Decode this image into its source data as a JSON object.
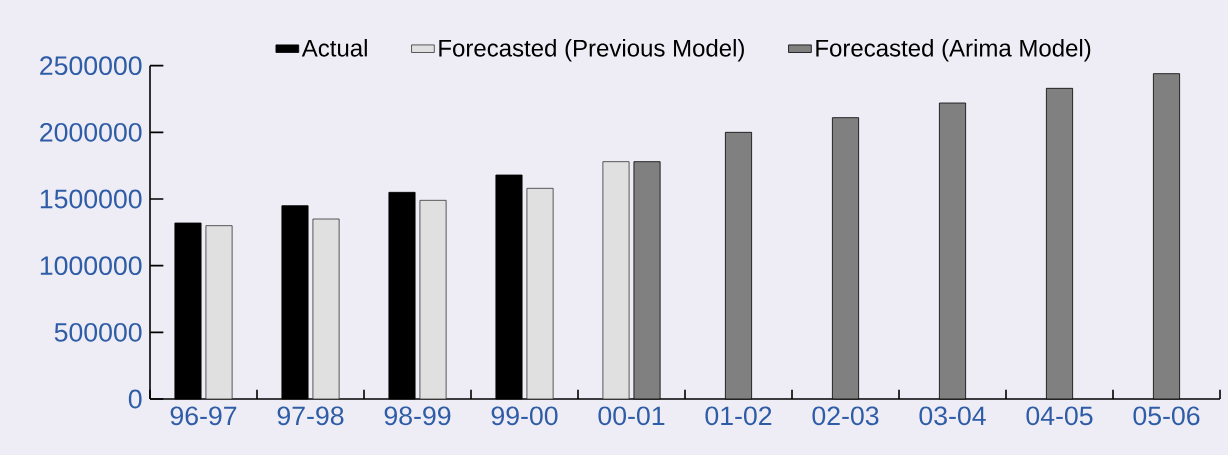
{
  "chart_data": {
    "type": "bar",
    "categories": [
      "96-97",
      "97-98",
      "98-99",
      "99-00",
      "00-01",
      "01-02",
      "02-03",
      "03-04",
      "04-05",
      "05-06"
    ],
    "series": [
      {
        "name": "Actual",
        "color": "#000000",
        "values": [
          1320000,
          1450000,
          1550000,
          1680000,
          null,
          null,
          null,
          null,
          null,
          null
        ]
      },
      {
        "name": "Forecasted (Previous Model)",
        "color": "#e0e0e0",
        "values": [
          1300000,
          1350000,
          1490000,
          1580000,
          1780000,
          null,
          null,
          null,
          null,
          null
        ]
      },
      {
        "name": "Forecasted (Arima Model)",
        "color": "#808080",
        "values": [
          null,
          null,
          null,
          null,
          1780000,
          2000000,
          2110000,
          2220000,
          2330000,
          2440000
        ]
      }
    ],
    "ylim": [
      0,
      2500000
    ],
    "yticks": [
      0,
      500000,
      1000000,
      1500000,
      2000000,
      2500000
    ],
    "grid": false,
    "legend": "top"
  }
}
